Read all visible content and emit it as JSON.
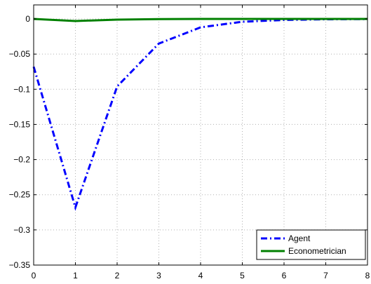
{
  "chart_data": {
    "type": "line",
    "title": "",
    "xlabel": "",
    "ylabel": "",
    "xlim": [
      0,
      8
    ],
    "ylim": [
      -0.35,
      0.02
    ],
    "grid": true,
    "legend_position": "bottom-right",
    "x_ticks": [
      0,
      1,
      2,
      3,
      4,
      5,
      6,
      7,
      8
    ],
    "x_tick_labels": [
      "0",
      "1",
      "2",
      "3",
      "4",
      "5",
      "6",
      "7",
      "8"
    ],
    "y_ticks": [
      0,
      -0.05,
      -0.1,
      -0.15,
      -0.2,
      -0.25,
      -0.3,
      -0.35
    ],
    "y_tick_labels": [
      "0",
      "−0.05",
      "−0.1",
      "−0.15",
      "−0.2",
      "−0.25",
      "−0.3",
      "−0.35"
    ],
    "series": [
      {
        "name": "Agent",
        "color": "#0000ff",
        "line_style": "dash-dot",
        "x": [
          0,
          1,
          2,
          3,
          4,
          5,
          6,
          7,
          8
        ],
        "values": [
          -0.068,
          -0.268,
          -0.096,
          -0.035,
          -0.012,
          -0.004,
          -0.0015,
          -0.0005,
          -0.0002
        ]
      },
      {
        "name": "Econometrician",
        "color": "#008000",
        "line_style": "solid",
        "x": [
          0,
          1,
          2,
          3,
          4,
          5,
          6,
          7,
          8
        ],
        "values": [
          0.0,
          -0.003,
          -0.001,
          -0.0003,
          0.0,
          0.0,
          0.0,
          0.0,
          0.0
        ]
      }
    ]
  }
}
